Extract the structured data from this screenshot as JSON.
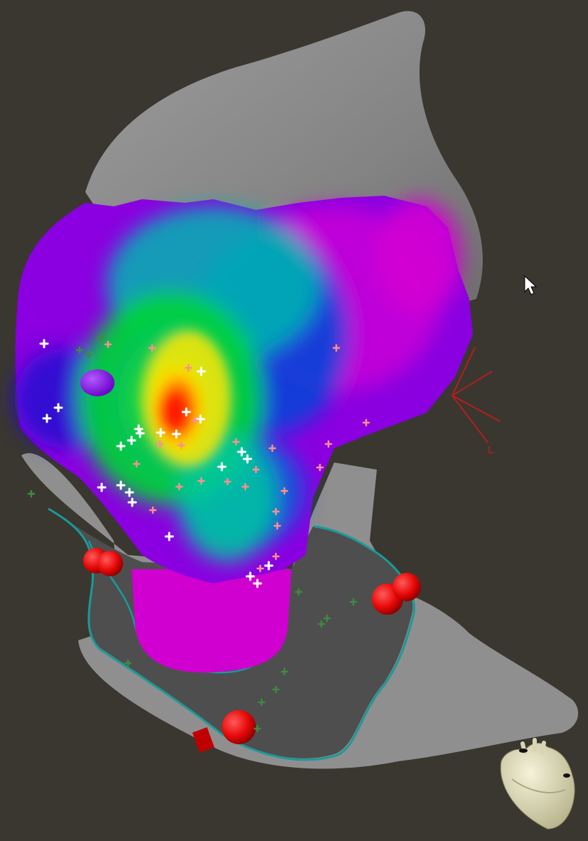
{
  "viewport": {
    "background_color": "#3a3730",
    "orientation_marker": {
      "label": "L",
      "color": "#d01818"
    },
    "cursor_icon": "arrow-pointer-icon",
    "heart_icon": "heart-orientation-icon"
  },
  "map": {
    "anatomy_color": "#8e8e8e",
    "ring_outline_color": "#1a9a9a",
    "activation_colormap": [
      "#ff1a00",
      "#ff8a00",
      "#ffe600",
      "#9aff00",
      "#00d23a",
      "#00b6b0",
      "#0a4fd8",
      "#3a08c8",
      "#8a00e0",
      "#d400d2"
    ],
    "ablation_tag_color": "#e80808",
    "point_colors": {
      "white": "#ffffff",
      "salmon": "#ff8f8f",
      "green": "#3f8a3f",
      "purple_marker": "#8a14e6"
    }
  }
}
